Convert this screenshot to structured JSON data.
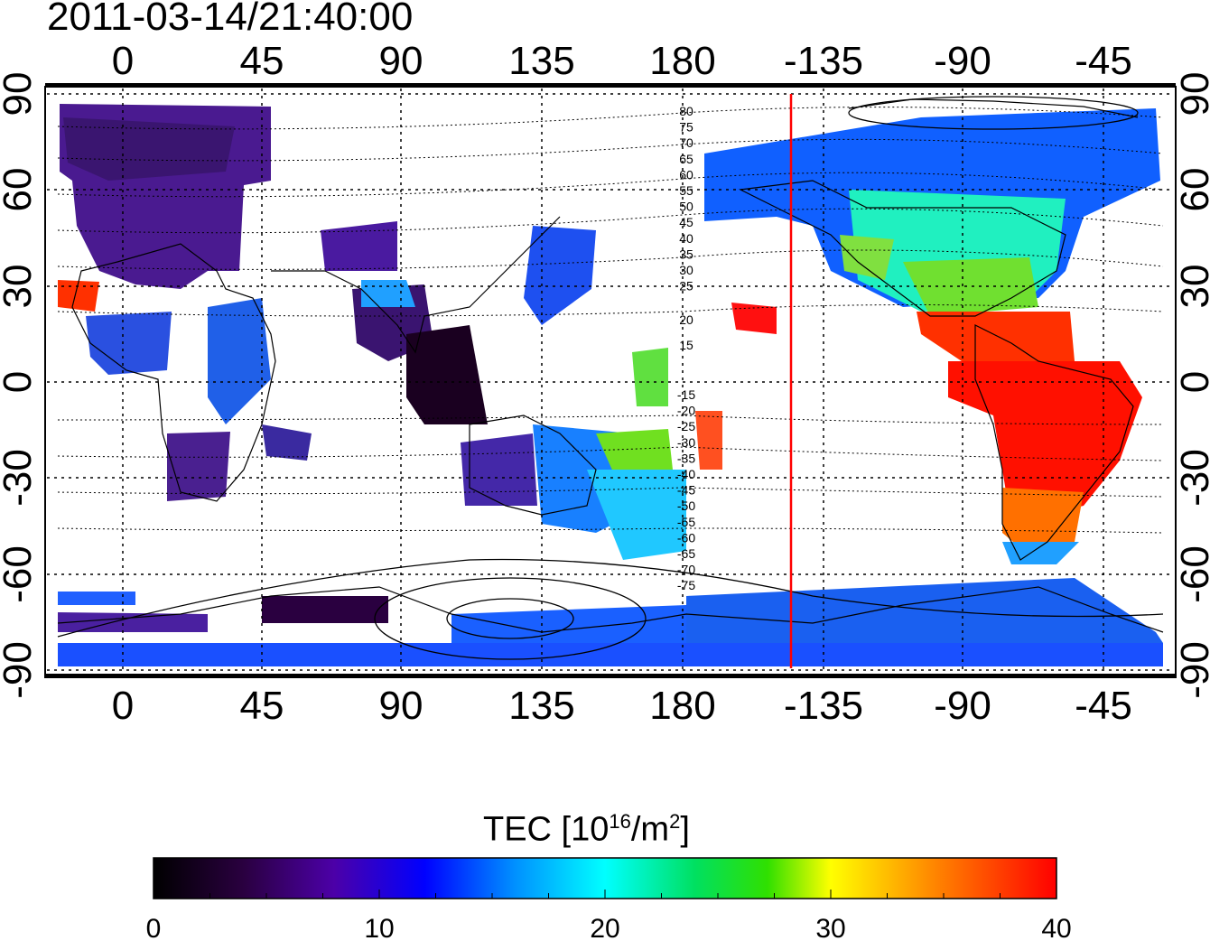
{
  "timestamp": "2011-03-14/21:40:00",
  "map": {
    "lon_ticks": [
      "0",
      "45",
      "90",
      "135",
      "180",
      "-135",
      "-90",
      "-45"
    ],
    "lat_ticks": [
      "90",
      "60",
      "30",
      "0",
      "-30",
      "-60",
      "-90"
    ],
    "contour_labels_north": [
      "80",
      "75",
      "70",
      "65",
      "60",
      "55",
      "50",
      "45",
      "40",
      "35",
      "30",
      "25",
      "20",
      "15"
    ],
    "contour_labels_south": [
      "-15",
      "-20",
      "-25",
      "-30",
      "-35",
      "-40",
      "-45",
      "-50",
      "-55",
      "-60",
      "-65",
      "-70",
      "-75"
    ],
    "terminator_longitude": -140,
    "terminator_color": "#ff0000"
  },
  "colorbar": {
    "title_text": "TEC  [10",
    "title_exp": "16",
    "title_unit": "/m",
    "title_unit_exp": "2",
    "title_close": "]",
    "tick_labels": [
      "0",
      "10",
      "20",
      "30",
      "40"
    ],
    "range": [
      0,
      40
    ],
    "colors": [
      "#000000",
      "#2a0040",
      "#4c00a8",
      "#0000ff",
      "#0090ff",
      "#00ffff",
      "#00e060",
      "#30e000",
      "#ffff00",
      "#ff8000",
      "#ff0000"
    ]
  }
}
